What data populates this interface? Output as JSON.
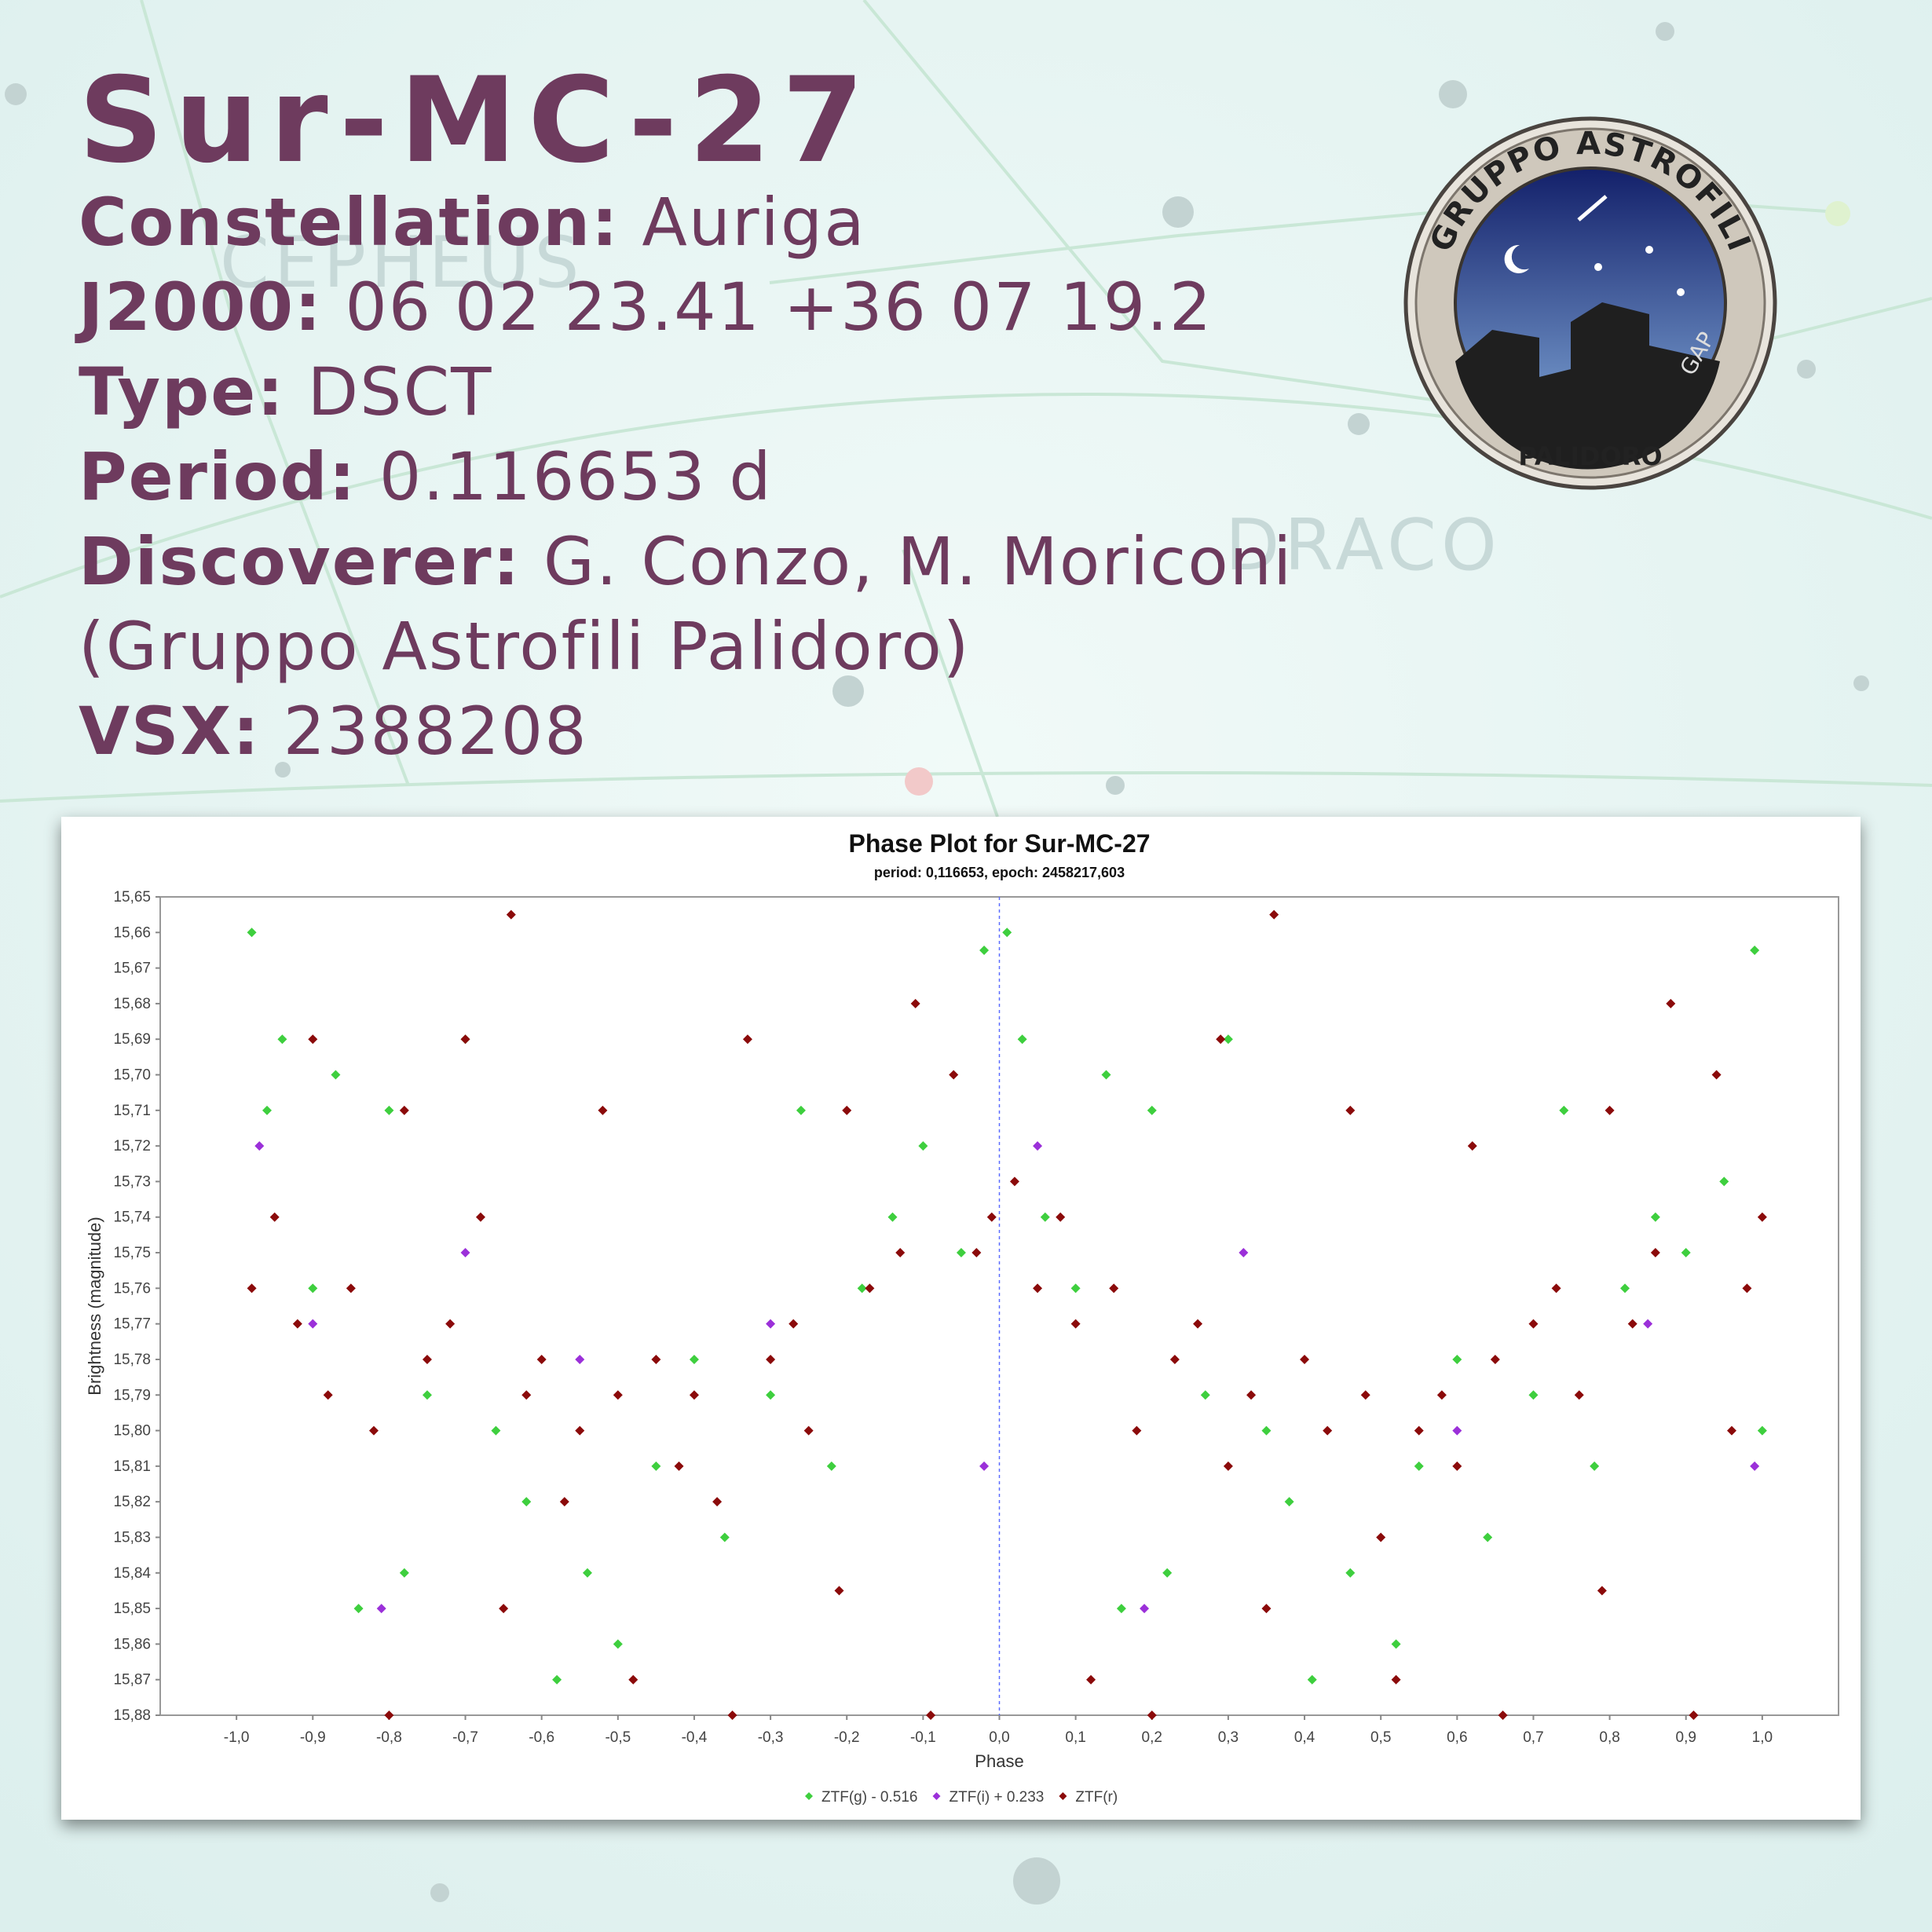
{
  "header": {
    "title": "Sur-MC-27",
    "info": [
      {
        "label": "Constellation:",
        "value": "Auriga"
      },
      {
        "label": "J2000:",
        "value": "06 02 23.41 +36 07 19.2"
      },
      {
        "label": "Type:",
        "value": "DSCT"
      },
      {
        "label": "Period:",
        "value": "0.116653 d"
      },
      {
        "label": "Discoverer:",
        "value": "G. Conzo, M. Moriconi"
      },
      {
        "value": "(Gruppo Astrofili Palidoro)"
      },
      {
        "label": "VSX:",
        "value": "2388208"
      }
    ]
  },
  "background_labels": [
    "CEPHEUS",
    "DRACO"
  ],
  "logo": {
    "top_text": "GRUPPO ASTROFILI",
    "bottom_text": "PALIDORO",
    "mark": "GAP"
  },
  "chart_data": {
    "type": "scatter",
    "title": "Phase Plot for Sur-MC-27",
    "subtitle": "period: 0,116653, epoch: 2458217,603",
    "x_label": "Phase",
    "y_label": "Brightness (magnitude)",
    "xlim": [
      -1.1,
      1.1
    ],
    "ylim": [
      15.65,
      15.88
    ],
    "y_inverted": true,
    "vline": 0,
    "legend": "bottom",
    "xticks": [
      {
        "value": -1.0,
        "label": "-1,0"
      },
      {
        "value": -0.9,
        "label": "-0,9"
      },
      {
        "value": -0.8,
        "label": "-0,8"
      },
      {
        "value": -0.7,
        "label": "-0,7"
      },
      {
        "value": -0.6,
        "label": "-0,6"
      },
      {
        "value": -0.5,
        "label": "-0,5"
      },
      {
        "value": -0.4,
        "label": "-0,4"
      },
      {
        "value": -0.3,
        "label": "-0,3"
      },
      {
        "value": -0.2,
        "label": "-0,2"
      },
      {
        "value": -0.1,
        "label": "-0,1"
      },
      {
        "value": 0.0,
        "label": "0,0"
      },
      {
        "value": 0.1,
        "label": "0,1"
      },
      {
        "value": 0.2,
        "label": "0,2"
      },
      {
        "value": 0.3,
        "label": "0,3"
      },
      {
        "value": 0.4,
        "label": "0,4"
      },
      {
        "value": 0.5,
        "label": "0,5"
      },
      {
        "value": 0.6,
        "label": "0,6"
      },
      {
        "value": 0.7,
        "label": "0,7"
      },
      {
        "value": 0.8,
        "label": "0,8"
      },
      {
        "value": 0.9,
        "label": "0,9"
      },
      {
        "value": 1.0,
        "label": "1,0"
      }
    ],
    "yticks": [
      {
        "value": 15.65,
        "label": "15,65"
      },
      {
        "value": 15.66,
        "label": "15,66"
      },
      {
        "value": 15.67,
        "label": "15,67"
      },
      {
        "value": 15.68,
        "label": "15,68"
      },
      {
        "value": 15.69,
        "label": "15,69"
      },
      {
        "value": 15.7,
        "label": "15,70"
      },
      {
        "value": 15.71,
        "label": "15,71"
      },
      {
        "value": 15.72,
        "label": "15,72"
      },
      {
        "value": 15.73,
        "label": "15,73"
      },
      {
        "value": 15.74,
        "label": "15,74"
      },
      {
        "value": 15.75,
        "label": "15,75"
      },
      {
        "value": 15.76,
        "label": "15,76"
      },
      {
        "value": 15.77,
        "label": "15,77"
      },
      {
        "value": 15.78,
        "label": "15,78"
      },
      {
        "value": 15.79,
        "label": "15,79"
      },
      {
        "value": 15.8,
        "label": "15,80"
      },
      {
        "value": 15.81,
        "label": "15,81"
      },
      {
        "value": 15.82,
        "label": "15,82"
      },
      {
        "value": 15.83,
        "label": "15,83"
      },
      {
        "value": 15.84,
        "label": "15,84"
      },
      {
        "value": 15.85,
        "label": "15,85"
      },
      {
        "value": 15.86,
        "label": "15,86"
      },
      {
        "value": 15.87,
        "label": "15,87"
      },
      {
        "value": 15.88,
        "label": "15,88"
      }
    ],
    "series": [
      {
        "name": "ZTF(g) - 0.516",
        "color": "#3ecf3e",
        "x": [
          -0.98,
          -0.96,
          -0.94,
          -0.9,
          -0.87,
          -0.84,
          -0.8,
          -0.78,
          -0.75,
          -0.7,
          -0.66,
          -0.62,
          -0.58,
          -0.54,
          -0.5,
          -0.45,
          -0.4,
          -0.36,
          -0.3,
          -0.26,
          -0.22,
          -0.18,
          -0.14,
          -0.1,
          -0.05,
          -0.02,
          0.01,
          0.03,
          0.06,
          0.1,
          0.14,
          0.16,
          0.2,
          0.22,
          0.27,
          0.3,
          0.35,
          0.38,
          0.41,
          0.46,
          0.52,
          0.55,
          0.6,
          0.64,
          0.7,
          0.74,
          0.78,
          0.82,
          0.86,
          0.9,
          0.95,
          0.99,
          1.0
        ],
        "values": [
          15.66,
          15.71,
          15.69,
          15.76,
          15.7,
          15.85,
          15.71,
          15.84,
          15.79,
          15.69,
          15.8,
          15.82,
          15.87,
          15.84,
          15.86,
          15.81,
          15.78,
          15.83,
          15.79,
          15.71,
          15.81,
          15.76,
          15.74,
          15.72,
          15.75,
          15.665,
          15.66,
          15.69,
          15.74,
          15.76,
          15.7,
          15.85,
          15.71,
          15.84,
          15.79,
          15.69,
          15.8,
          15.82,
          15.87,
          15.84,
          15.86,
          15.81,
          15.78,
          15.83,
          15.79,
          15.71,
          15.81,
          15.76,
          15.74,
          15.75,
          15.73,
          15.665,
          15.8
        ]
      },
      {
        "name": "ZTF(i) + 0.233",
        "color": "#9b30d9",
        "x": [
          -0.97,
          -0.9,
          -0.81,
          -0.7,
          -0.55,
          -0.3,
          -0.02,
          0.05,
          0.19,
          0.32,
          0.6,
          0.85,
          0.99
        ],
        "values": [
          15.72,
          15.77,
          15.85,
          15.75,
          15.78,
          15.77,
          15.81,
          15.72,
          15.85,
          15.75,
          15.8,
          15.77,
          15.81
        ]
      },
      {
        "name": "ZTF(r)",
        "color": "#8b0a0a",
        "x": [
          -0.98,
          -0.95,
          -0.92,
          -0.9,
          -0.88,
          -0.85,
          -0.82,
          -0.8,
          -0.78,
          -0.75,
          -0.72,
          -0.7,
          -0.68,
          -0.65,
          -0.64,
          -0.62,
          -0.6,
          -0.57,
          -0.55,
          -0.52,
          -0.5,
          -0.48,
          -0.45,
          -0.42,
          -0.4,
          -0.37,
          -0.35,
          -0.33,
          -0.3,
          -0.27,
          -0.25,
          -0.21,
          -0.2,
          -0.17,
          -0.13,
          -0.11,
          -0.09,
          -0.06,
          -0.03,
          -0.01,
          0.02,
          0.05,
          0.08,
          0.1,
          0.12,
          0.15,
          0.18,
          0.2,
          0.23,
          0.26,
          0.29,
          0.3,
          0.33,
          0.35,
          0.36,
          0.4,
          0.43,
          0.46,
          0.48,
          0.5,
          0.52,
          0.55,
          0.58,
          0.6,
          0.62,
          0.65,
          0.66,
          0.7,
          0.73,
          0.76,
          0.79,
          0.8,
          0.83,
          0.86,
          0.88,
          0.91,
          0.94,
          0.96,
          0.98,
          1.0
        ],
        "values": [
          15.76,
          15.74,
          15.77,
          15.69,
          15.79,
          15.76,
          15.8,
          15.88,
          15.71,
          15.78,
          15.77,
          15.69,
          15.74,
          15.85,
          15.655,
          15.79,
          15.78,
          15.82,
          15.8,
          15.71,
          15.79,
          15.87,
          15.78,
          15.81,
          15.79,
          15.82,
          15.88,
          15.69,
          15.78,
          15.77,
          15.8,
          15.845,
          15.71,
          15.76,
          15.75,
          15.68,
          15.88,
          15.7,
          15.75,
          15.74,
          15.73,
          15.76,
          15.74,
          15.77,
          15.87,
          15.76,
          15.8,
          15.88,
          15.78,
          15.77,
          15.69,
          15.81,
          15.79,
          15.85,
          15.655,
          15.78,
          15.8,
          15.71,
          15.79,
          15.83,
          15.87,
          15.8,
          15.79,
          15.81,
          15.72,
          15.78,
          15.88,
          15.77,
          15.76,
          15.79,
          15.845,
          15.71,
          15.77,
          15.75,
          15.68,
          15.88,
          15.7,
          15.8,
          15.76,
          15.74
        ]
      }
    ]
  }
}
